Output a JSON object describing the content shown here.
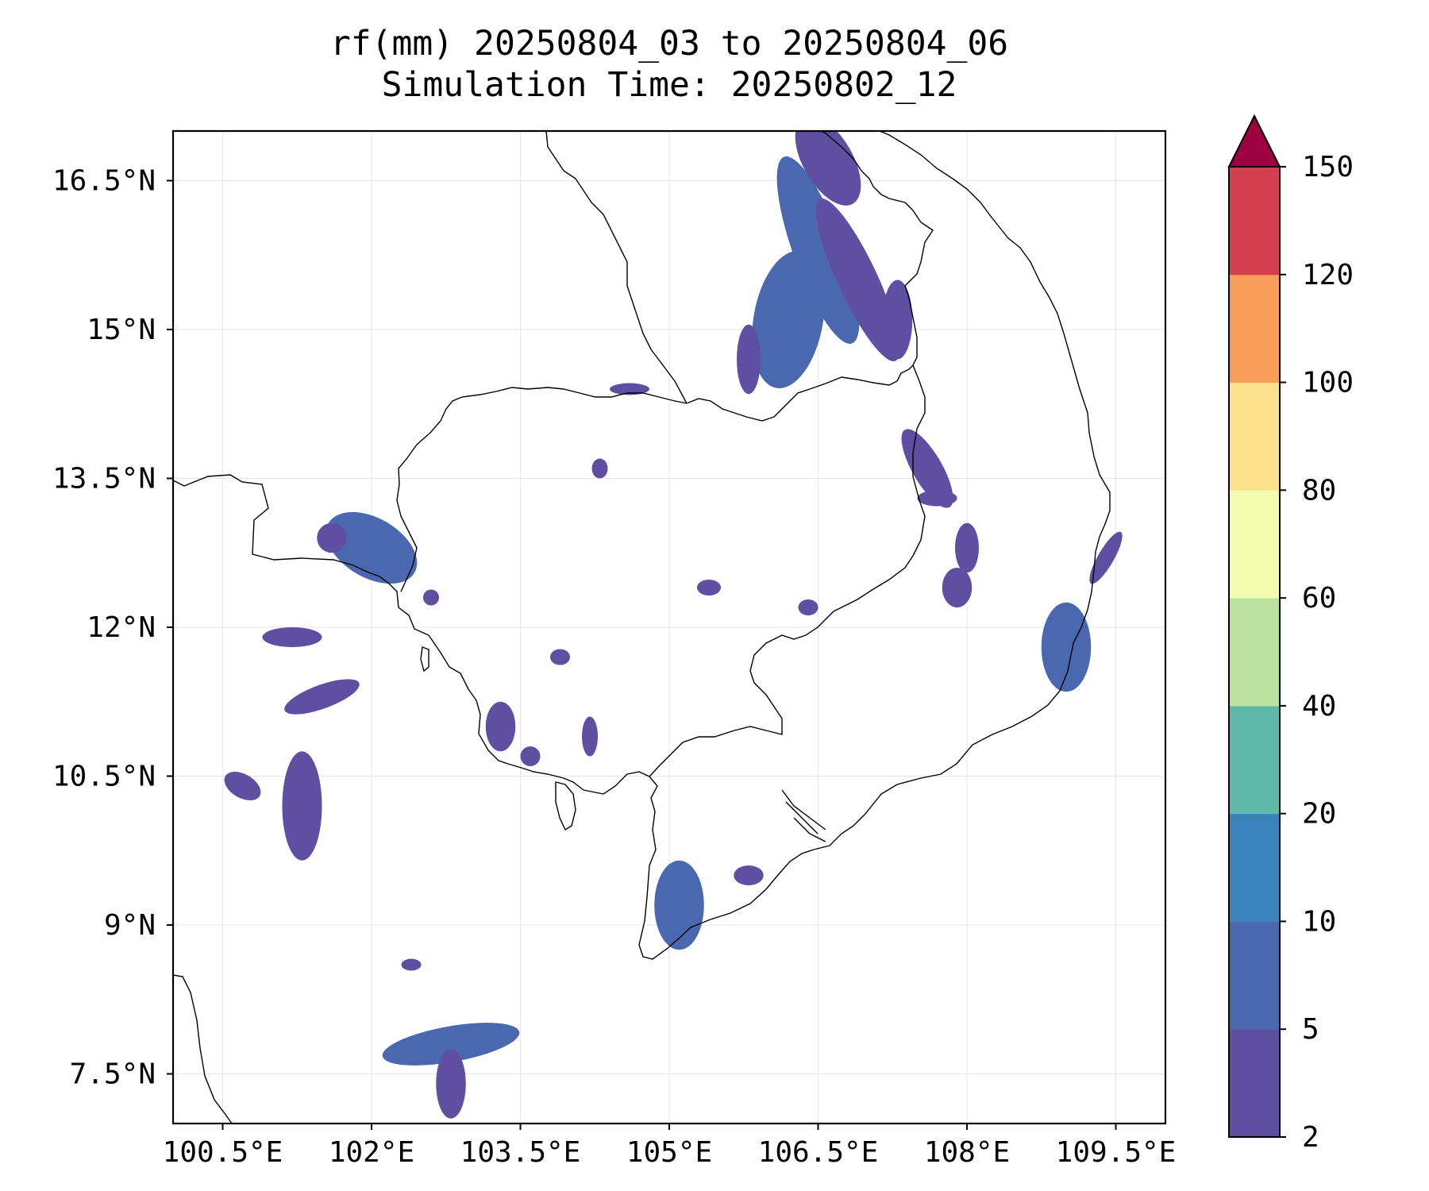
{
  "title": {
    "line1": "rf(mm) 20250804_03 to 20250804_06",
    "line2": "Simulation Time: 20250802_12"
  },
  "map": {
    "lon_range": [
      100.0,
      110.0
    ],
    "lat_range": [
      7.0,
      17.0
    ],
    "grid": true,
    "x_ticks": [
      {
        "value": 100.5,
        "label": "100.5°E"
      },
      {
        "value": 102.0,
        "label": "102°E"
      },
      {
        "value": 103.5,
        "label": "103.5°E"
      },
      {
        "value": 105.0,
        "label": "105°E"
      },
      {
        "value": 106.5,
        "label": "106.5°E"
      },
      {
        "value": 108.0,
        "label": "108°E"
      },
      {
        "value": 109.5,
        "label": "109.5°E"
      }
    ],
    "y_ticks": [
      {
        "value": 16.5,
        "label": "16.5°N"
      },
      {
        "value": 15.0,
        "label": "15°N"
      },
      {
        "value": 13.5,
        "label": "13.5°N"
      },
      {
        "value": 12.0,
        "label": "12°N"
      },
      {
        "value": 10.5,
        "label": "10.5°N"
      },
      {
        "value": 9.0,
        "label": "9°N"
      },
      {
        "value": 7.5,
        "label": "7.5°N"
      }
    ]
  },
  "colorbar": {
    "levels": [
      2,
      5,
      10,
      20,
      40,
      60,
      80,
      100,
      120,
      150
    ],
    "colors": [
      "#5e4fa2",
      "#4a68b0",
      "#3b83bd",
      "#5fb9a8",
      "#bbe2a0",
      "#f3fbae",
      "#fce08e",
      "#f99d5a",
      "#d53e4f"
    ],
    "extend_color": "#9e0142",
    "extend": "max",
    "labels": [
      "2",
      "5",
      "10",
      "20",
      "40",
      "60",
      "80",
      "100",
      "120",
      "150"
    ]
  },
  "rain_areas": [
    {
      "lon": 106.5,
      "lat": 15.8,
      "rx": 0.25,
      "ry": 1.0,
      "rot": -20,
      "level": 1
    },
    {
      "lon": 106.2,
      "lat": 15.1,
      "rx": 0.35,
      "ry": 0.7,
      "rot": 10,
      "level": 1
    },
    {
      "lon": 106.9,
      "lat": 15.5,
      "rx": 0.2,
      "ry": 0.9,
      "rot": -25,
      "level": 0
    },
    {
      "lon": 106.6,
      "lat": 16.7,
      "rx": 0.25,
      "ry": 0.5,
      "rot": -30,
      "level": 0
    },
    {
      "lon": 107.3,
      "lat": 15.1,
      "rx": 0.15,
      "ry": 0.4,
      "rot": 0,
      "level": 0
    },
    {
      "lon": 105.8,
      "lat": 14.7,
      "rx": 0.12,
      "ry": 0.35,
      "rot": 0,
      "level": 0
    },
    {
      "lon": 104.6,
      "lat": 14.4,
      "rx": 0.2,
      "ry": 0.06,
      "rot": 0,
      "level": 0
    },
    {
      "lon": 107.6,
      "lat": 13.6,
      "rx": 0.15,
      "ry": 0.45,
      "rot": -30,
      "level": 0
    },
    {
      "lon": 107.7,
      "lat": 13.3,
      "rx": 0.2,
      "ry": 0.08,
      "rot": 0,
      "level": 0
    },
    {
      "lon": 108.0,
      "lat": 12.8,
      "rx": 0.12,
      "ry": 0.25,
      "rot": 0,
      "level": 0
    },
    {
      "lon": 107.9,
      "lat": 12.4,
      "rx": 0.15,
      "ry": 0.2,
      "rot": 0,
      "level": 0
    },
    {
      "lon": 109.0,
      "lat": 11.8,
      "rx": 0.25,
      "ry": 0.45,
      "rot": 0,
      "level": 1
    },
    {
      "lon": 109.4,
      "lat": 12.7,
      "rx": 0.08,
      "ry": 0.3,
      "rot": 30,
      "level": 0
    },
    {
      "lon": 102.0,
      "lat": 12.8,
      "rx": 0.5,
      "ry": 0.3,
      "rot": 30,
      "level": 1
    },
    {
      "lon": 101.6,
      "lat": 12.9,
      "rx": 0.15,
      "ry": 0.15,
      "rot": 0,
      "level": 0
    },
    {
      "lon": 101.2,
      "lat": 11.9,
      "rx": 0.3,
      "ry": 0.1,
      "rot": 0,
      "level": 0
    },
    {
      "lon": 101.5,
      "lat": 11.3,
      "rx": 0.4,
      "ry": 0.12,
      "rot": -20,
      "level": 0
    },
    {
      "lon": 101.3,
      "lat": 10.2,
      "rx": 0.2,
      "ry": 0.55,
      "rot": 0,
      "level": 0
    },
    {
      "lon": 100.7,
      "lat": 10.4,
      "rx": 0.2,
      "ry": 0.12,
      "rot": 30,
      "level": 0
    },
    {
      "lon": 103.3,
      "lat": 11.0,
      "rx": 0.15,
      "ry": 0.25,
      "rot": 0,
      "level": 0
    },
    {
      "lon": 103.6,
      "lat": 10.7,
      "rx": 0.1,
      "ry": 0.1,
      "rot": 0,
      "level": 0
    },
    {
      "lon": 105.1,
      "lat": 9.2,
      "rx": 0.25,
      "ry": 0.45,
      "rot": 0,
      "level": 1
    },
    {
      "lon": 105.8,
      "lat": 9.5,
      "rx": 0.15,
      "ry": 0.1,
      "rot": 0,
      "level": 0
    },
    {
      "lon": 102.8,
      "lat": 7.8,
      "rx": 0.7,
      "ry": 0.18,
      "rot": -10,
      "level": 1
    },
    {
      "lon": 102.8,
      "lat": 7.4,
      "rx": 0.15,
      "ry": 0.35,
      "rot": 0,
      "level": 0
    },
    {
      "lon": 102.4,
      "lat": 8.6,
      "rx": 0.1,
      "ry": 0.06,
      "rot": 0,
      "level": 0
    },
    {
      "lon": 105.4,
      "lat": 12.4,
      "rx": 0.12,
      "ry": 0.08,
      "rot": 0,
      "level": 0
    },
    {
      "lon": 106.4,
      "lat": 12.2,
      "rx": 0.1,
      "ry": 0.08,
      "rot": 0,
      "level": 0
    },
    {
      "lon": 104.3,
      "lat": 13.6,
      "rx": 0.08,
      "ry": 0.1,
      "rot": 0,
      "level": 0
    },
    {
      "lon": 102.6,
      "lat": 12.3,
      "rx": 0.08,
      "ry": 0.08,
      "rot": 0,
      "level": 0
    },
    {
      "lon": 103.9,
      "lat": 11.7,
      "rx": 0.1,
      "ry": 0.08,
      "rot": 0,
      "level": 0
    },
    {
      "lon": 104.2,
      "lat": 10.9,
      "rx": 0.08,
      "ry": 0.2,
      "rot": 0,
      "level": 0
    }
  ]
}
